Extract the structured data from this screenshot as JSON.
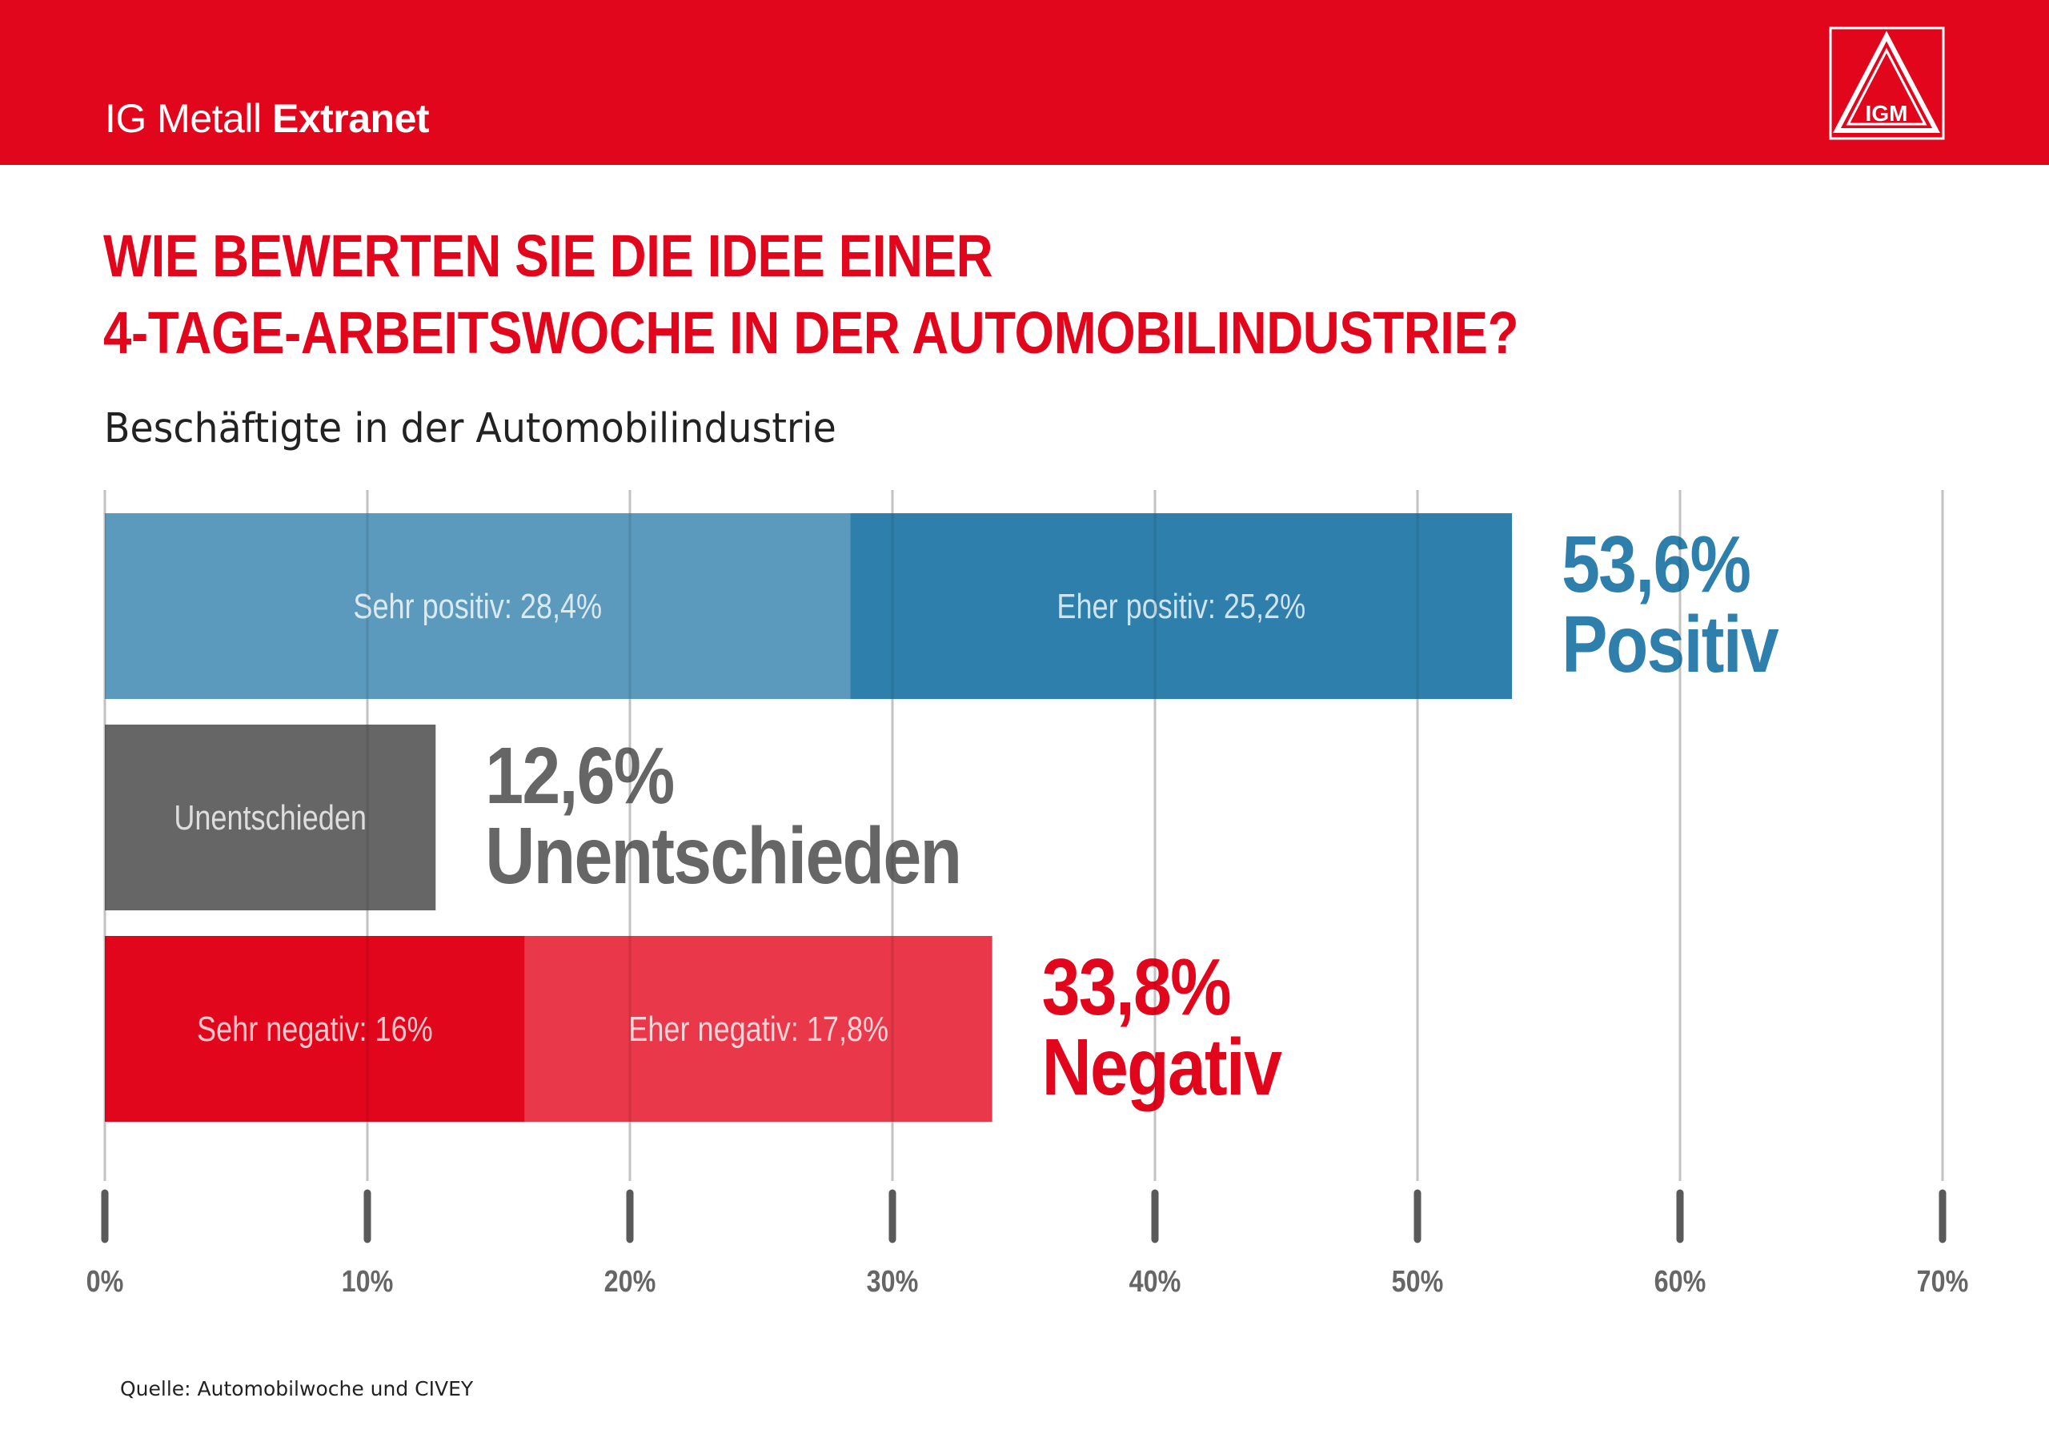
{
  "header": {
    "brand_regular": "IG Metall",
    "brand_bold": "Extranet",
    "logo_label": "IGM"
  },
  "title_lines": [
    "WIE BEWERTEN SIE DIE IDEE EINER",
    "4-TAGE-ARBEITSWOCHE IN DER AUTOMOBILINDUSTRIE?"
  ],
  "subtitle": "Beschäftigte in der Automobilindustrie",
  "source": "Quelle: Automobilwoche und CIVEY",
  "colors": {
    "brand_red": "#e2061c",
    "sehr_positiv": "#5b9abd",
    "eher_positiv": "#2e7fab",
    "unentschieden": "#666666",
    "sehr_negativ": "#e2061c",
    "eher_negativ": "#e8384a",
    "positive_text": "#2e7fab",
    "neutral_text": "#666666",
    "negative_text": "#e2061c"
  },
  "chart_data": {
    "type": "bar",
    "orientation": "horizontal",
    "stacked": true,
    "xlim": [
      0,
      70
    ],
    "ticks": [
      0,
      10,
      20,
      30,
      40,
      50,
      60,
      70
    ],
    "tick_labels": [
      "0%",
      "10%",
      "20%",
      "30%",
      "40%",
      "50%",
      "60%",
      "70%"
    ],
    "grid": true,
    "rows": [
      {
        "total_value": "53,6%",
        "total_label": "Positiv",
        "total_color_key": "positive_text",
        "segments": [
          {
            "label": "Sehr positiv: 28,4%",
            "value": 28.4,
            "color_key": "sehr_positiv"
          },
          {
            "label": "Eher positiv: 25,2%",
            "value": 25.2,
            "color_key": "eher_positiv"
          }
        ]
      },
      {
        "total_value": "12,6%",
        "total_label": "Unentschieden",
        "total_color_key": "neutral_text",
        "segments": [
          {
            "label": "Unentschieden",
            "value": 12.6,
            "color_key": "unentschieden"
          }
        ]
      },
      {
        "total_value": "33,8%",
        "total_label": "Negativ",
        "total_color_key": "negative_text",
        "segments": [
          {
            "label": "Sehr negativ: 16%",
            "value": 16,
            "color_key": "sehr_negativ"
          },
          {
            "label": "Eher negativ: 17,8%",
            "value": 17.8,
            "color_key": "eher_negativ"
          }
        ]
      }
    ]
  }
}
